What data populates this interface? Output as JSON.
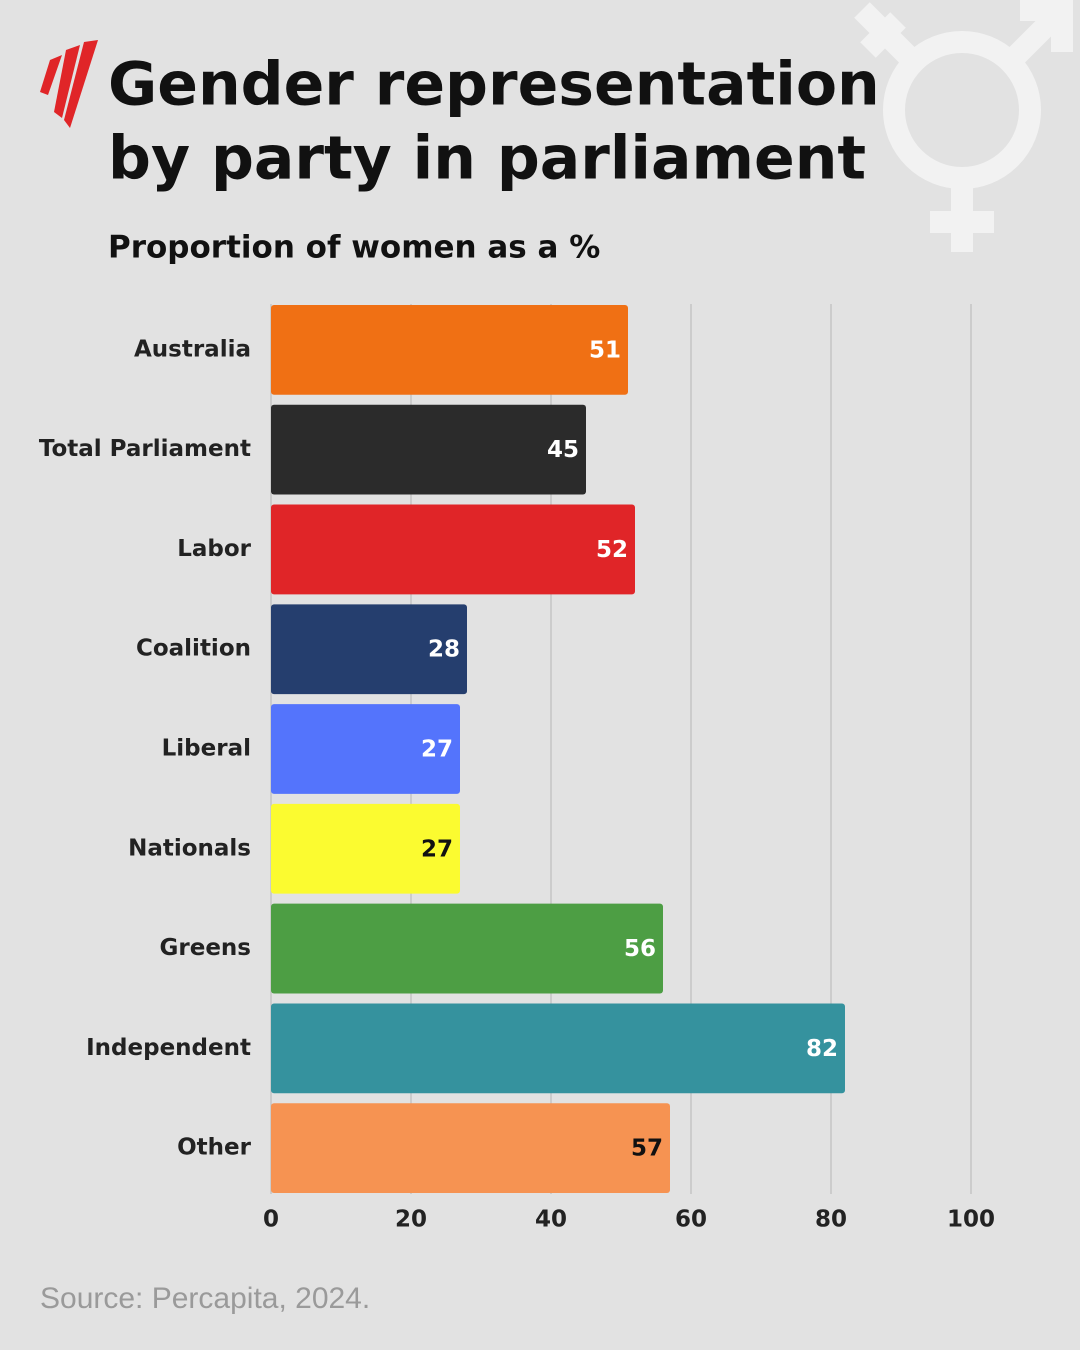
{
  "chart_data": {
    "type": "bar",
    "orientation": "horizontal",
    "title": [
      "Gender representation",
      "by party in parliament"
    ],
    "subtitle": "Proportion of women as a %",
    "categories": [
      "Australia",
      "Total Parliament",
      "Labor",
      "Coalition",
      "Liberal",
      "Nationals",
      "Greens",
      "Independent",
      "Other"
    ],
    "values": [
      51,
      45,
      52,
      28,
      27,
      27,
      56,
      82,
      57
    ],
    "colors": [
      "#f07014",
      "#2b2b2b",
      "#e02528",
      "#253e6e",
      "#5474fc",
      "#fbfb30",
      "#4d9e44",
      "#35929e",
      "#f69352"
    ],
    "xlim": [
      0,
      100
    ],
    "xticks": [
      0,
      20,
      40,
      60,
      80,
      100
    ],
    "grid": true,
    "source": "Source: Percapita, 2024."
  }
}
